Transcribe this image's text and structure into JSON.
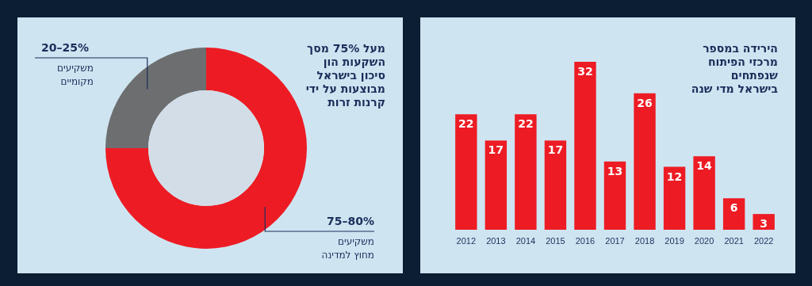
{
  "chart_data": [
    {
      "type": "donut",
      "title": "מעל 75% מסך\nהשקעות הון\nסיכון בישראל\nמבוצעות על ידי\nקרנות זרות",
      "categories": [
        "משקיעים מחוץ למדינה",
        "משקיעים מקומיים"
      ],
      "values": [
        75,
        25
      ],
      "annotations": [
        "75–80%",
        "20–25%"
      ],
      "colors": [
        "#ed1c24",
        "#6d6e70"
      ]
    },
    {
      "type": "bar",
      "title": "הירידה במספר\nמרכזי הפיתוח\nשנפתחים\nבישראל מדי שנה",
      "categories": [
        "2012",
        "2013",
        "2014",
        "2015",
        "2016",
        "2017",
        "2018",
        "2019",
        "2020",
        "2021",
        "2022"
      ],
      "values": [
        22,
        17,
        22,
        17,
        32,
        13,
        26,
        12,
        14,
        6,
        3
      ],
      "color": "#ed1c24",
      "data_labels": true
    }
  ]
}
